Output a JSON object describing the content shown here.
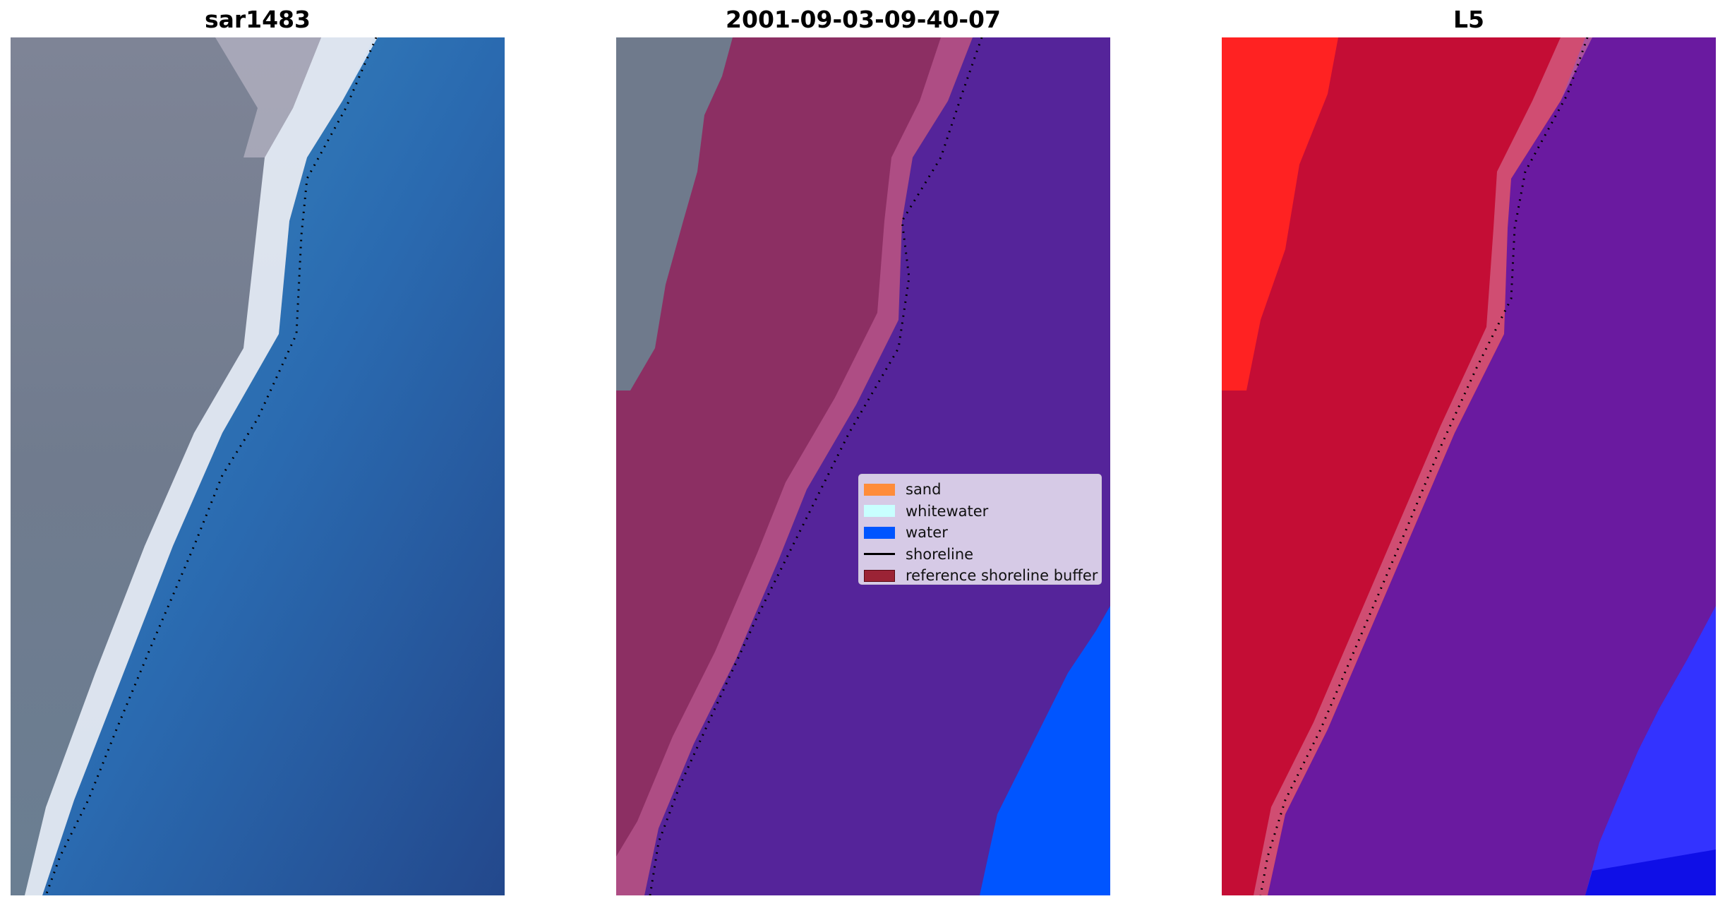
{
  "panels": [
    {
      "title": "sar1483"
    },
    {
      "title": "2001-09-03-09-40-07"
    },
    {
      "title": "L5"
    }
  ],
  "legend": {
    "items": [
      {
        "label": "sand",
        "kind": "patch",
        "color": "#ff8c3a"
      },
      {
        "label": "whitewater",
        "kind": "patch",
        "color": "#c8ffff"
      },
      {
        "label": "water",
        "kind": "patch",
        "color": "#0055ff"
      },
      {
        "label": "shoreline",
        "kind": "line",
        "color": "#000000"
      },
      {
        "label": "reference shoreline buffer",
        "kind": "patch",
        "color": "#9b2335",
        "edge": "#5a0a14"
      }
    ]
  },
  "colors": {
    "rgb_land": "#707b8e",
    "rgb_water": "#2a6ab0",
    "rgb_surf": "#e8eef8",
    "class_land": "#6f7a8c",
    "class_buffer": "#8c2f63",
    "class_buffer_light": "#b6558c",
    "class_water": "#55249a",
    "class_water_blue": "#0055ff",
    "index_red": "#c40d35",
    "index_bright_red": "#ff2222",
    "index_purple": "#6a1aa0",
    "index_blue": "#3333ff",
    "shoreline": "#000000"
  }
}
